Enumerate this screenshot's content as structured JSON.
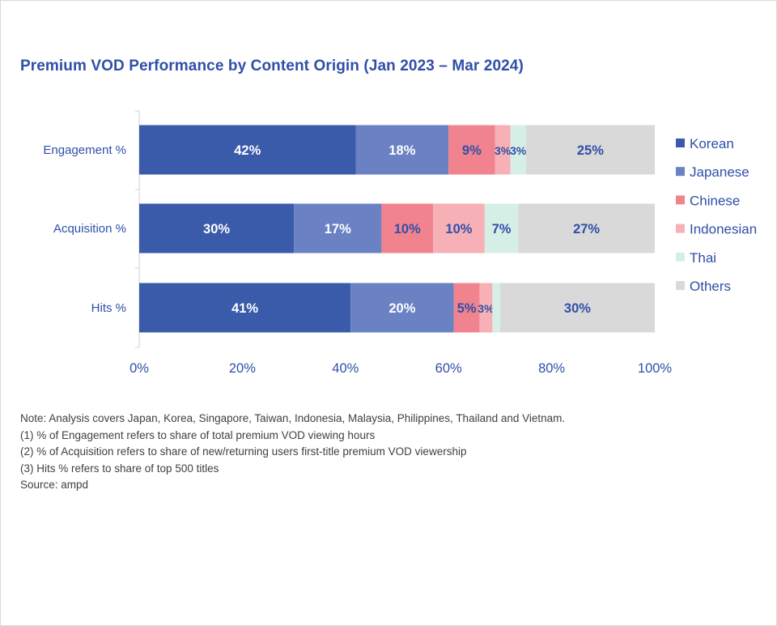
{
  "chart_data": {
    "type": "bar",
    "orientation": "horizontal",
    "stacked": true,
    "title": "Premium VOD Performance by Content Origin (Jan 2023 – Mar 2024)",
    "categories": [
      "Engagement %",
      "Acquisition %",
      "Hits %"
    ],
    "series": [
      {
        "name": "Korean",
        "values": [
          42,
          30,
          41
        ],
        "labels": [
          "42%",
          "30%",
          "41%"
        ],
        "color": "#3a5aaa",
        "label_color": "#ffffff"
      },
      {
        "name": "Japanese",
        "values": [
          18,
          17,
          20
        ],
        "labels": [
          "18%",
          "17%",
          "20%"
        ],
        "color": "#6a82c4",
        "label_color": "#ffffff"
      },
      {
        "name": "Chinese",
        "values": [
          9,
          10,
          5
        ],
        "labels": [
          "9%",
          "10%",
          "5%"
        ],
        "color": "#f0838d",
        "label_color": "#2f4fa8"
      },
      {
        "name": "Indonesian",
        "values": [
          3,
          10,
          2.5
        ],
        "labels": [
          "3%",
          "10%",
          "3%"
        ],
        "color": "#f6b0b6",
        "label_color": "#2f4fa8"
      },
      {
        "name": "Thai",
        "values": [
          3,
          6.5,
          1.5
        ],
        "labels": [
          "3%",
          "7%",
          ""
        ],
        "color": "#d6efe6",
        "label_color": "#2f4fa8"
      },
      {
        "name": "Others",
        "values": [
          25,
          26.5,
          30
        ],
        "labels": [
          "25%",
          "27%",
          "30%"
        ],
        "color": "#d9d9d9",
        "label_color": "#2f4fa8"
      }
    ],
    "xlim": [
      0,
      100
    ],
    "x_ticks": [
      "0%",
      "20%",
      "40%",
      "60%",
      "80%",
      "100%"
    ],
    "grid": false,
    "legend_position": "right"
  },
  "notes": [
    "Note: Analysis covers Japan, Korea, Singapore, Taiwan, Indonesia, Malaysia, Philippines, Thailand and Vietnam.",
    "(1) % of Engagement refers to share of total premium VOD viewing hours",
    "(2) % of Acquisition refers to share of new/returning users first-title premium VOD viewership",
    "(3) Hits % refers to share of top 500 titles",
    "Source: ampd"
  ]
}
